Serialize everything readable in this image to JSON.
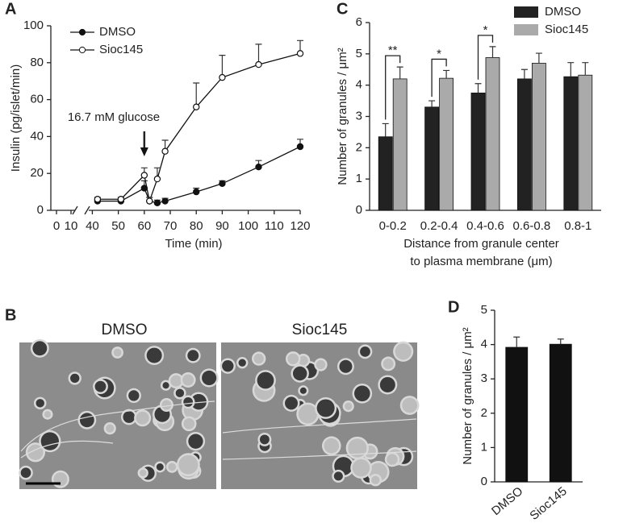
{
  "chart_data": [
    {
      "type": "line",
      "panel_label": "A",
      "ylabel": "Insulin (pg/islet/min)",
      "xlabel": "Time (min)",
      "x": [
        42,
        51,
        60,
        62,
        65,
        68,
        80,
        90,
        104,
        120
      ],
      "xlim": [
        0,
        120
      ],
      "xbreak": [
        15,
        38
      ],
      "xticks": [
        0,
        10,
        40,
        50,
        60,
        70,
        80,
        90,
        100,
        110,
        120
      ],
      "ylim": [
        0,
        100
      ],
      "yticks": [
        0,
        20,
        40,
        60,
        80,
        100
      ],
      "annotation": {
        "text": "16.7 mM glucose",
        "x": 60
      },
      "series": [
        {
          "name": "DMSO",
          "color": "#111111",
          "marker": "filled",
          "values": [
            5,
            5,
            12,
            5,
            4,
            5,
            10,
            14.5,
            23.5,
            34.5
          ],
          "errors": [
            1,
            1,
            4,
            2,
            1.5,
            1.5,
            2,
            1.5,
            3.5,
            4
          ]
        },
        {
          "name": "Sioc145",
          "color": "#111111",
          "marker": "open",
          "values": [
            6,
            6,
            19,
            5,
            17,
            32,
            56,
            72,
            79,
            85
          ],
          "errors": [
            1,
            1,
            4,
            2,
            6,
            6,
            13,
            12,
            11,
            7
          ]
        }
      ]
    },
    {
      "type": "bar",
      "panel_label": "C",
      "ylabel": "Number of granules / μm²",
      "xlabel": [
        "Distance from granule center",
        "to plasma membrane (μm)"
      ],
      "categories": [
        "0-0.2",
        "0.2-0.4",
        "0.4-0.6",
        "0.6-0.8",
        "0.8-1"
      ],
      "ylim": [
        0,
        6
      ],
      "yticks": [
        0,
        1,
        2,
        3,
        4,
        5,
        6
      ],
      "legend": "top-right",
      "annotations": [
        "**",
        "*",
        "*",
        null,
        null
      ],
      "series": [
        {
          "name": "DMSO",
          "color": "#222222",
          "values": [
            2.35,
            3.3,
            3.75,
            4.2,
            4.27
          ],
          "errors": [
            0.42,
            0.2,
            0.3,
            0.3,
            0.45
          ]
        },
        {
          "name": "Sioc145",
          "color": "#aaaaaa",
          "values": [
            4.2,
            4.22,
            4.88,
            4.7,
            4.32
          ],
          "errors": [
            0.38,
            0.25,
            0.35,
            0.32,
            0.4
          ]
        }
      ]
    },
    {
      "type": "bar",
      "panel_label": "D",
      "ylabel": "Number of granules / μm²",
      "categories": [
        "DMSO",
        "Sioc145"
      ],
      "ylim": [
        0,
        5
      ],
      "yticks": [
        0,
        1,
        2,
        3,
        4,
        5
      ],
      "color": "#111111",
      "values": [
        3.92,
        4.01
      ],
      "errors": [
        0.3,
        0.15
      ]
    }
  ],
  "panel_b": {
    "panel_label": "B",
    "titles": [
      "DMSO",
      "Sioc145"
    ]
  }
}
